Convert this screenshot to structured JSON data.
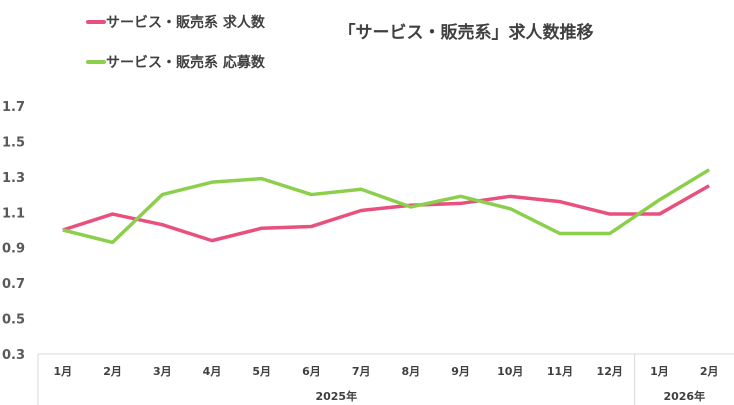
{
  "chart_data": {
    "type": "line",
    "title": "「サービス・販売系」求人数推移",
    "categories": [
      "1月",
      "2月",
      "3月",
      "4月",
      "5月",
      "6月",
      "7月",
      "8月",
      "9月",
      "10月",
      "11月",
      "12月",
      "1月",
      "2月"
    ],
    "groups": [
      {
        "label": "2025年",
        "count": 12
      },
      {
        "label": "2026年",
        "count": 2
      }
    ],
    "series": [
      {
        "name": "サービス・販売系 求人数",
        "color": "#E8507E",
        "values": [
          1.0,
          1.09,
          1.03,
          0.94,
          1.01,
          1.02,
          1.11,
          1.14,
          1.15,
          1.19,
          1.16,
          1.09,
          1.09,
          1.25
        ]
      },
      {
        "name": "サービス・販売系 応募数",
        "color": "#8CCF4D",
        "values": [
          1.0,
          0.93,
          1.2,
          1.27,
          1.29,
          1.2,
          1.23,
          1.13,
          1.19,
          1.12,
          0.98,
          0.98,
          1.17,
          1.34
        ]
      }
    ],
    "ylim": [
      0.3,
      1.7
    ],
    "yticks": [
      "0.3",
      "0.5",
      "0.7",
      "0.9",
      "1.1",
      "1.3",
      "1.5",
      "1.7"
    ],
    "grid": false,
    "legend_position": "top-left"
  }
}
